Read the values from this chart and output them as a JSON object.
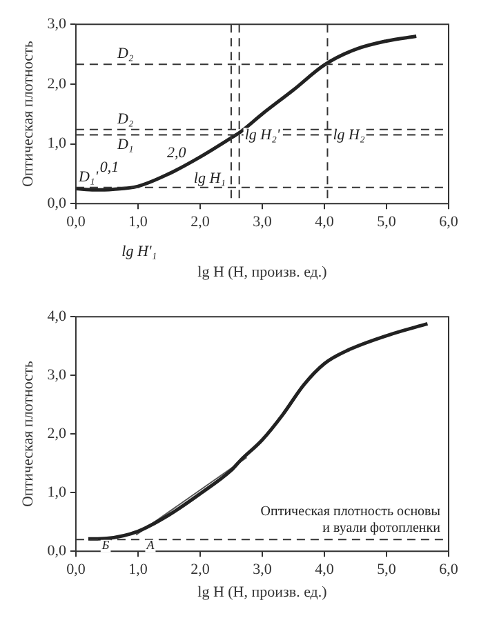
{
  "chart_data": [
    {
      "type": "line",
      "xlabel": "lg H (H, произв. ед.)",
      "ylabel": "Оптическая плотность",
      "xlim": [
        0,
        6
      ],
      "ylim": [
        0,
        3
      ],
      "xticks": [
        {
          "value": 0,
          "label": "0,0"
        },
        {
          "value": 1,
          "label": "1,0"
        },
        {
          "value": 2,
          "label": "2,0"
        },
        {
          "value": 3,
          "label": "3,0"
        },
        {
          "value": 4,
          "label": "4,0"
        },
        {
          "value": 5,
          "label": "5,0"
        },
        {
          "value": 6,
          "label": "6,0"
        }
      ],
      "yticks": [
        {
          "value": 0,
          "label": "0,0"
        },
        {
          "value": 1,
          "label": "1,0"
        },
        {
          "value": 2,
          "label": "2,0"
        },
        {
          "value": 3,
          "label": "3,0"
        }
      ],
      "series": [
        {
          "color": "#222222",
          "x": [
            0,
            0.3,
            0.6,
            1.0,
            1.5,
            2.0,
            2.5,
            2.65,
            3.0,
            3.5,
            4.0,
            4.5,
            5.0,
            5.48
          ],
          "values": [
            0.25,
            0.23,
            0.24,
            0.29,
            0.5,
            0.78,
            1.1,
            1.2,
            1.5,
            1.9,
            2.32,
            2.58,
            2.72,
            2.8
          ]
        }
      ],
      "ref_lines": [
        {
          "axis": "y",
          "value": 2.33,
          "label": "D₂",
          "line_style": "dashed"
        },
        {
          "axis": "y",
          "value": 1.24,
          "label": "D₂",
          "line_style": "dashed"
        },
        {
          "axis": "y",
          "value": 1.15,
          "label": "D₁",
          "line_style": "dashed"
        },
        {
          "axis": "y",
          "value": 0.27,
          "label": "D₁'",
          "line_style": "dashed"
        },
        {
          "axis": "x",
          "value": 2.5,
          "label": "lg H₁",
          "line_style": "dashed"
        },
        {
          "axis": "x",
          "value": 2.63,
          "label": "lg H₂'",
          "line_style": "dashed"
        },
        {
          "axis": "x",
          "value": 4.05,
          "label": "lg H₂",
          "line_style": "dashed"
        }
      ],
      "annotations": [
        "0,1",
        "2,0",
        "lg H'₁"
      ],
      "marker": "none",
      "legend": false,
      "grid": false
    },
    {
      "type": "line",
      "xlabel": "lg H (H, произв. ед.)",
      "ylabel": "Оптическая плотность",
      "xlim": [
        0,
        6
      ],
      "ylim": [
        0,
        4
      ],
      "xticks": [
        {
          "value": 0,
          "label": "0,0"
        },
        {
          "value": 1,
          "label": "1,0"
        },
        {
          "value": 2,
          "label": "2,0"
        },
        {
          "value": 3,
          "label": "3,0"
        },
        {
          "value": 4,
          "label": "4,0"
        },
        {
          "value": 5,
          "label": "5,0"
        },
        {
          "value": 6,
          "label": "6,0"
        }
      ],
      "yticks": [
        {
          "value": 0,
          "label": "0,0"
        },
        {
          "value": 1,
          "label": "1,0"
        },
        {
          "value": 2,
          "label": "2,0"
        },
        {
          "value": 3,
          "label": "3,0"
        },
        {
          "value": 4,
          "label": "4,0"
        }
      ],
      "series": [
        {
          "color": "#222222",
          "x": [
            0.2,
            0.5,
            1.0,
            1.5,
            2.0,
            2.5,
            2.65,
            3.0,
            3.33,
            3.67,
            4.0,
            4.36,
            5.04,
            5.66
          ],
          "values": [
            0.21,
            0.22,
            0.34,
            0.62,
            0.98,
            1.38,
            1.55,
            1.9,
            2.33,
            2.84,
            3.2,
            3.42,
            3.69,
            3.88
          ]
        },
        {
          "type": "line",
          "color": "#555555",
          "x": [
            0.97,
            2.75
          ],
          "values": [
            0.28,
            1.6
          ]
        }
      ],
      "ref_lines": [
        {
          "axis": "y",
          "value": 0.2,
          "label": "Оптическая плотность основы\nи вуали фотопленки",
          "line_style": "dashed"
        }
      ],
      "annotations": [
        "Б",
        "А"
      ],
      "marker": "none",
      "legend": false,
      "grid": false
    }
  ]
}
